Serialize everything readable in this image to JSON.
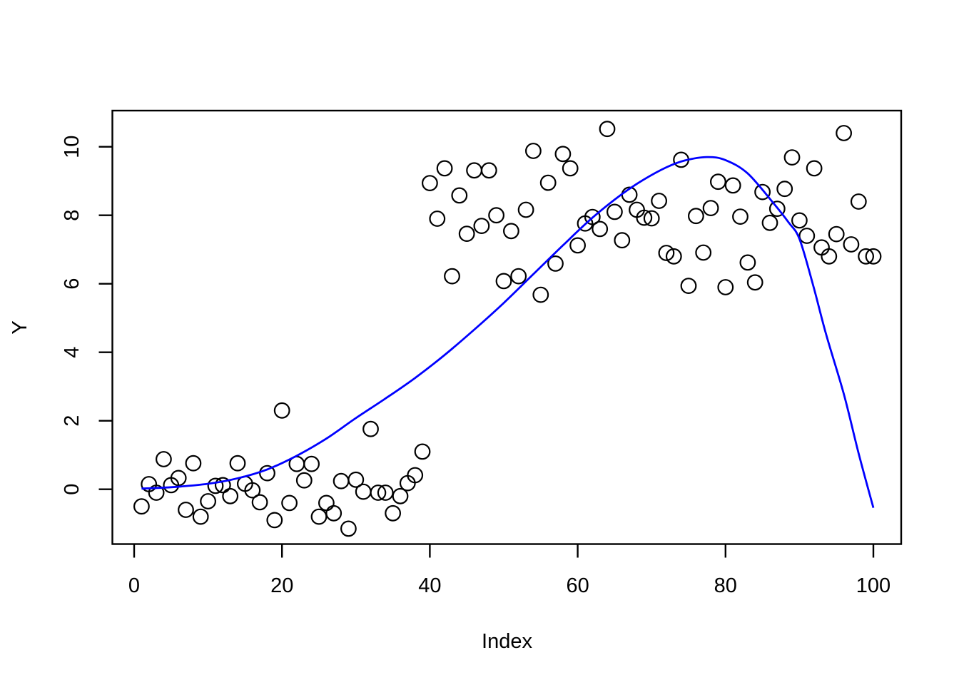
{
  "figure": {
    "background": "#ffffff",
    "xlabel": "Index",
    "ylabel": "Y"
  },
  "chart_data": {
    "type": "scatter",
    "title": "",
    "xlabel": "Index",
    "ylabel": "Y",
    "xlim": [
      -2.9,
      103.8
    ],
    "ylim": [
      -1.61,
      11.06
    ],
    "x_ticks": [
      0,
      20,
      40,
      60,
      80,
      100
    ],
    "y_ticks": [
      0,
      2,
      4,
      6,
      8,
      10
    ],
    "grid": false,
    "legend": null,
    "point_style": {
      "marker": "open-circle",
      "stroke_color": "#000000",
      "radius_px": 10.3,
      "stroke_width_px": 2.2
    },
    "points": [
      [
        1,
        -0.5
      ],
      [
        2,
        0.15
      ],
      [
        3,
        -0.1
      ],
      [
        4,
        0.88
      ],
      [
        5,
        0.12
      ],
      [
        6,
        0.33
      ],
      [
        7,
        -0.6
      ],
      [
        8,
        0.76
      ],
      [
        9,
        -0.8
      ],
      [
        10,
        -0.35
      ],
      [
        11,
        0.1
      ],
      [
        12,
        0.12
      ],
      [
        13,
        -0.2
      ],
      [
        14,
        0.76
      ],
      [
        15,
        0.16
      ],
      [
        16,
        -0.03
      ],
      [
        17,
        -0.38
      ],
      [
        18,
        0.47
      ],
      [
        19,
        -0.9
      ],
      [
        20,
        2.3
      ],
      [
        21,
        -0.4
      ],
      [
        22,
        0.74
      ],
      [
        23,
        0.26
      ],
      [
        24,
        0.74
      ],
      [
        25,
        -0.8
      ],
      [
        26,
        -0.4
      ],
      [
        27,
        -0.7
      ],
      [
        28,
        0.24
      ],
      [
        29,
        -1.15
      ],
      [
        30,
        0.28
      ],
      [
        31,
        -0.07
      ],
      [
        32,
        1.76
      ],
      [
        33,
        -0.1
      ],
      [
        34,
        -0.1
      ],
      [
        35,
        -0.7
      ],
      [
        36,
        -0.2
      ],
      [
        37,
        0.18
      ],
      [
        38,
        0.41
      ],
      [
        39,
        1.1
      ],
      [
        40,
        8.94
      ],
      [
        41,
        7.9
      ],
      [
        42,
        9.37
      ],
      [
        43,
        6.22
      ],
      [
        44,
        8.58
      ],
      [
        45,
        7.46
      ],
      [
        46,
        9.31
      ],
      [
        47,
        7.69
      ],
      [
        48,
        9.31
      ],
      [
        49,
        8.0
      ],
      [
        50,
        6.08
      ],
      [
        51,
        7.54
      ],
      [
        52,
        6.22
      ],
      [
        53,
        8.16
      ],
      [
        54,
        9.88
      ],
      [
        55,
        5.68
      ],
      [
        56,
        8.95
      ],
      [
        57,
        6.59
      ],
      [
        58,
        9.79
      ],
      [
        59,
        9.37
      ],
      [
        60,
        7.12
      ],
      [
        61,
        7.76
      ],
      [
        62,
        7.95
      ],
      [
        63,
        7.6
      ],
      [
        64,
        10.52
      ],
      [
        65,
        8.1
      ],
      [
        66,
        7.27
      ],
      [
        67,
        8.6
      ],
      [
        68,
        8.16
      ],
      [
        69,
        7.93
      ],
      [
        70,
        7.91
      ],
      [
        71,
        8.42
      ],
      [
        72,
        6.9
      ],
      [
        73,
        6.8
      ],
      [
        74,
        9.62
      ],
      [
        75,
        5.94
      ],
      [
        76,
        7.98
      ],
      [
        77,
        6.91
      ],
      [
        78,
        8.21
      ],
      [
        79,
        8.98
      ],
      [
        80,
        5.9
      ],
      [
        81,
        8.87
      ],
      [
        82,
        7.96
      ],
      [
        83,
        6.62
      ],
      [
        84,
        6.04
      ],
      [
        85,
        8.68
      ],
      [
        86,
        7.78
      ],
      [
        87,
        8.19
      ],
      [
        88,
        8.77
      ],
      [
        89,
        9.69
      ],
      [
        90,
        7.85
      ],
      [
        91,
        7.4
      ],
      [
        92,
        9.37
      ],
      [
        93,
        7.06
      ],
      [
        94,
        6.8
      ],
      [
        95,
        7.45
      ],
      [
        96,
        10.4
      ],
      [
        97,
        7.15
      ],
      [
        98,
        8.4
      ],
      [
        99,
        6.8
      ],
      [
        100,
        6.8
      ]
    ],
    "fit_curve": {
      "name": "polynomial-fit-line",
      "color": "#0000ff",
      "stroke_width_px": 2.8,
      "points": [
        [
          1,
          0.02
        ],
        [
          5,
          0.06
        ],
        [
          10,
          0.16
        ],
        [
          14,
          0.32
        ],
        [
          18,
          0.58
        ],
        [
          22,
          0.98
        ],
        [
          26,
          1.48
        ],
        [
          30,
          2.08
        ],
        [
          34,
          2.65
        ],
        [
          38,
          3.25
        ],
        [
          42,
          3.92
        ],
        [
          46,
          4.66
        ],
        [
          50,
          5.44
        ],
        [
          54,
          6.28
        ],
        [
          58,
          7.12
        ],
        [
          62,
          7.93
        ],
        [
          66,
          8.62
        ],
        [
          69,
          9.05
        ],
        [
          72,
          9.4
        ],
        [
          74.5,
          9.6
        ],
        [
          77.5,
          9.7
        ],
        [
          80,
          9.61
        ],
        [
          83,
          9.22
        ],
        [
          86.5,
          8.35
        ],
        [
          88.5,
          7.8
        ],
        [
          90,
          7.31
        ],
        [
          91.8,
          6.0
        ],
        [
          93.6,
          4.53
        ],
        [
          96,
          2.78
        ],
        [
          98,
          1.05
        ],
        [
          100,
          -0.54
        ]
      ]
    }
  }
}
